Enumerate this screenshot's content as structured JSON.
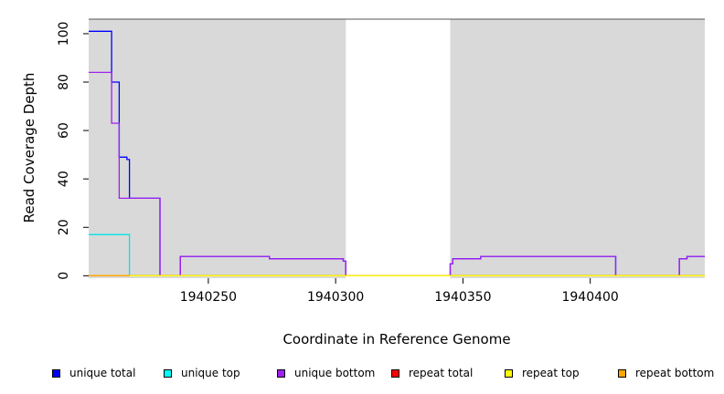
{
  "chart_data": {
    "type": "line",
    "xlabel": "Coordinate in Reference Genome",
    "ylabel": "Read Coverage Depth",
    "xlim": [
      1940203,
      1940445
    ],
    "ylim": [
      -1,
      106
    ],
    "xticks": [
      1940250,
      1940300,
      1940350,
      1940400
    ],
    "xtick_labels": [
      "1940250",
      "1940300",
      "1940350",
      "1940400"
    ],
    "yticks": [
      0,
      20,
      40,
      60,
      80,
      100
    ],
    "ytick_labels": [
      "0",
      "20",
      "40",
      "60",
      "80",
      "100"
    ],
    "background_color": "#d9d9d9",
    "unshaded_regions": [
      [
        1940304,
        1940345
      ]
    ],
    "series": [
      {
        "name": "unique total",
        "color": "#0000ff",
        "steps": [
          [
            1940203,
            101
          ],
          [
            1940212,
            80
          ],
          [
            1940215,
            49
          ],
          [
            1940218,
            48
          ],
          [
            1940219,
            32
          ],
          [
            1940231,
            0
          ],
          [
            1940239,
            8
          ],
          [
            1940274,
            7
          ],
          [
            1940303,
            6
          ],
          [
            1940304,
            0
          ],
          [
            1940345,
            5
          ],
          [
            1940346,
            7
          ],
          [
            1940357,
            8
          ],
          [
            1940410,
            0
          ],
          [
            1940435,
            7
          ],
          [
            1940438,
            8
          ],
          [
            1940445,
            8
          ]
        ]
      },
      {
        "name": "unique top",
        "color": "#00e5e5",
        "steps": [
          [
            1940203,
            17
          ],
          [
            1940219,
            0
          ],
          [
            1940445,
            0
          ]
        ]
      },
      {
        "name": "unique bottom",
        "color": "#a020f0",
        "steps": [
          [
            1940203,
            84
          ],
          [
            1940212,
            63
          ],
          [
            1940215,
            32
          ],
          [
            1940219,
            32
          ],
          [
            1940231,
            0
          ],
          [
            1940239,
            8
          ],
          [
            1940274,
            7
          ],
          [
            1940303,
            6
          ],
          [
            1940304,
            0
          ],
          [
            1940345,
            5
          ],
          [
            1940346,
            7
          ],
          [
            1940357,
            8
          ],
          [
            1940410,
            0
          ],
          [
            1940435,
            7
          ],
          [
            1940438,
            8
          ],
          [
            1940445,
            8
          ]
        ]
      },
      {
        "name": "repeat total",
        "color": "#ff0000",
        "steps": [
          [
            1940203,
            0
          ],
          [
            1940445,
            0
          ]
        ]
      },
      {
        "name": "repeat top",
        "color": "#ffff00",
        "steps": [
          [
            1940203,
            0
          ],
          [
            1940445,
            0
          ]
        ]
      },
      {
        "name": "repeat bottom",
        "color": "#ffa500",
        "steps": [
          [
            1940203,
            0
          ],
          [
            1940219,
            0
          ]
        ]
      }
    ],
    "legend": {
      "placement": "bottom",
      "entries": [
        {
          "label": "unique total",
          "color": "#0000ff"
        },
        {
          "label": "unique top",
          "color": "#00ffff"
        },
        {
          "label": "unique bottom",
          "color": "#a020f0"
        },
        {
          "label": "repeat total",
          "color": "#ff0000"
        },
        {
          "label": "repeat top",
          "color": "#ffff00"
        },
        {
          "label": "repeat bottom",
          "color": "#ffa500"
        }
      ]
    }
  }
}
